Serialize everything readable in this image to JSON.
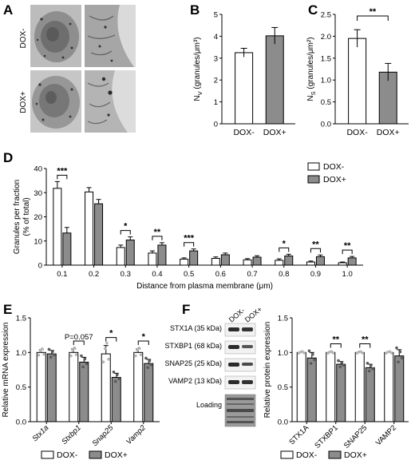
{
  "panel_labels": [
    "A",
    "B",
    "C",
    "D",
    "E",
    "F"
  ],
  "micrograph_labels": [
    "DOX-",
    "DOX+"
  ],
  "legend": {
    "dox_minus": "DOX-",
    "dox_plus": "DOX+"
  },
  "colors": {
    "dox_minus": "#ffffff",
    "dox_plus": "#8c8c8c",
    "edge": "#000000"
  },
  "blot": {
    "lane_labels": [
      "DOX-",
      "DOX+"
    ],
    "row_labels": [
      "STX1A (35 kDa)",
      "STXBP1 (68 kDa)",
      "SNAP25 (25 kDa)",
      "VAMP2 (13 kDa)",
      "Loading"
    ]
  },
  "chart_data": [
    {
      "panel": "B",
      "type": "bar",
      "categories": [
        "DOX-",
        "DOX+"
      ],
      "values": [
        3.25,
        4.02
      ],
      "errors": [
        0.2,
        0.38
      ],
      "ylabel": "N",
      "ylabel_sub": "V",
      "ylabel_unit": "(granules/μm³)",
      "ylim": [
        0,
        5
      ],
      "yticks": [
        "0",
        "1",
        "2",
        "3",
        "4",
        "5"
      ]
    },
    {
      "panel": "C",
      "type": "bar",
      "categories": [
        "DOX-",
        "DOX+"
      ],
      "values": [
        1.95,
        1.18
      ],
      "errors": [
        0.2,
        0.2
      ],
      "ylabel": "N",
      "ylabel_sub": "S",
      "ylabel_unit": "(granules/μm²)",
      "ylim": [
        0,
        2.5
      ],
      "yticks": [
        "0.0",
        "0.5",
        "1.0",
        "1.5",
        "2.0",
        "2.5"
      ],
      "annotations": [
        "**"
      ]
    },
    {
      "panel": "D",
      "type": "bar",
      "x": [
        "0.1",
        "0.2",
        "0.3",
        "0.4",
        "0.5",
        "0.6",
        "0.7",
        "0.8",
        "0.9",
        "1.0"
      ],
      "series": [
        {
          "name": "DOX-",
          "values": [
            31.8,
            30.3,
            7.3,
            5.0,
            2.5,
            2.8,
            2.2,
            2.0,
            1.3,
            1.0
          ],
          "errors": [
            2.8,
            1.8,
            1.0,
            0.9,
            0.5,
            0.6,
            0.5,
            0.6,
            0.4,
            0.3
          ]
        },
        {
          "name": "DOX+",
          "values": [
            13.3,
            25.4,
            10.4,
            8.3,
            5.9,
            4.3,
            3.3,
            3.8,
            3.5,
            3.0
          ],
          "errors": [
            2.3,
            1.8,
            1.3,
            1.0,
            0.8,
            0.7,
            0.6,
            0.7,
            0.7,
            0.6
          ]
        }
      ],
      "ylabel": "Granules per fraction",
      "ylabel2": "(% of total)",
      "xlabel": "Distance from plasma membrane (μm)",
      "ylim": [
        0,
        40
      ],
      "yticks": [
        "0",
        "10",
        "20",
        "30",
        "40"
      ],
      "significance": [
        "***",
        "",
        "*",
        "**",
        "***",
        "",
        "",
        "*",
        "**",
        "**"
      ]
    },
    {
      "panel": "E",
      "type": "bar",
      "categories": [
        "Stx1a",
        "Stxbp1",
        "Snap25",
        "Vamp2"
      ],
      "series": [
        {
          "name": "DOX-",
          "values": [
            1.0,
            1.0,
            0.98,
            1.0
          ],
          "errors": [
            0.04,
            0.05,
            0.12,
            0.05
          ]
        },
        {
          "name": "DOX+",
          "values": [
            0.98,
            0.86,
            0.64,
            0.84
          ],
          "errors": [
            0.05,
            0.07,
            0.06,
            0.06
          ]
        }
      ],
      "ylabel": "Relative mRNA expression",
      "ylim": [
        0,
        1.5
      ],
      "yticks": [
        "0.0",
        "0.5",
        "1.0",
        "1.5"
      ],
      "significance": [
        "",
        "P=0.057",
        "*",
        "*"
      ]
    },
    {
      "panel": "F",
      "type": "bar",
      "categories": [
        "STX1A",
        "STXBP1",
        "SNAP25",
        "VAMP2"
      ],
      "series": [
        {
          "name": "DOX-",
          "values": [
            1.0,
            1.0,
            1.0,
            1.0
          ],
          "errors": [
            0.01,
            0.01,
            0.01,
            0.01
          ]
        },
        {
          "name": "DOX+",
          "values": [
            0.92,
            0.83,
            0.78,
            0.95
          ],
          "errors": [
            0.08,
            0.04,
            0.05,
            0.09
          ]
        }
      ],
      "ylabel": "Relative protein expression",
      "ylim": [
        0,
        1.5
      ],
      "yticks": [
        "0.0",
        "0.5",
        "1.0",
        "1.5"
      ],
      "significance": [
        "",
        "**",
        "**",
        ""
      ]
    }
  ]
}
